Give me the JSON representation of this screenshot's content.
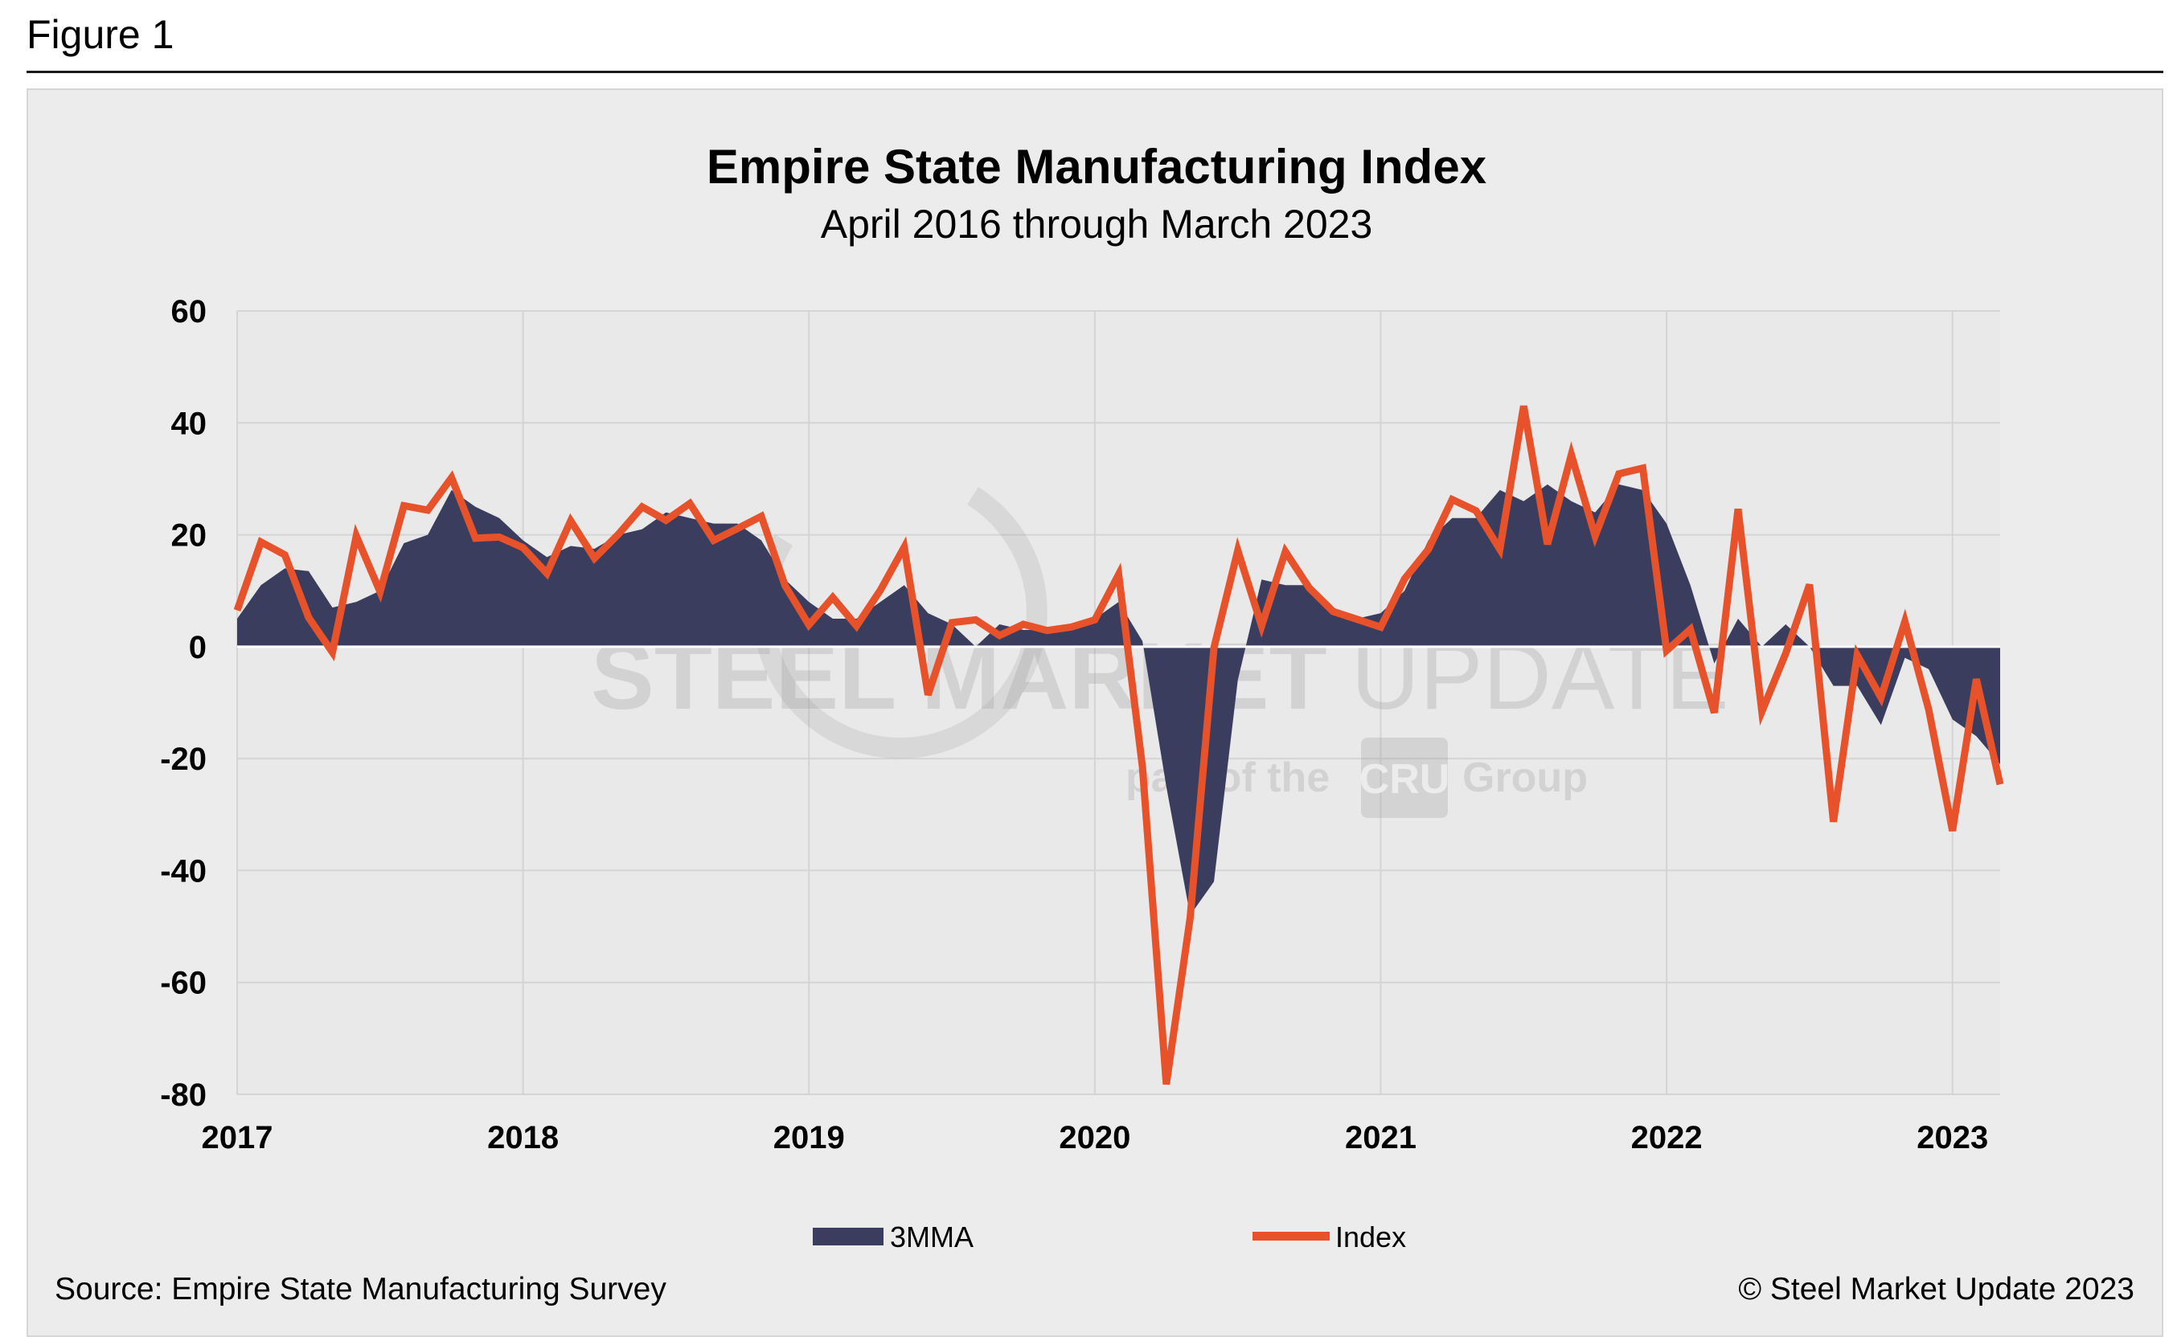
{
  "figure_label": "Figure 1",
  "source_text": "Source: Empire State Manufacturing Survey",
  "copyright_text": "© Steel Market Update 2023",
  "watermark": {
    "line1_bold": "STEEL MARKET",
    "line1_thin": "UPDATE",
    "line2_pre": "part of the",
    "line2_logo": "CRU",
    "line2_post": "Group"
  },
  "colors": {
    "area": "#3b3d5e",
    "line": "#e8522a",
    "grid": "#d4d4d4",
    "plot_bg": "#e9e9e9"
  },
  "chart_data": {
    "type": "line",
    "title": "Empire State Manufacturing Index",
    "subtitle": "April 2016 through March 2023",
    "xlabel": "",
    "ylabel": "",
    "ylim": [
      -80,
      60
    ],
    "yticks": [
      60,
      40,
      20,
      0,
      -20,
      -40,
      -60,
      -80
    ],
    "xlim": [
      "2017-01",
      "2023-03"
    ],
    "xticks": [
      "2017",
      "2018",
      "2019",
      "2020",
      "2021",
      "2022",
      "2023"
    ],
    "grid": true,
    "legend_position": "bottom",
    "x": [
      "2017-01",
      "2017-02",
      "2017-03",
      "2017-04",
      "2017-05",
      "2017-06",
      "2017-07",
      "2017-08",
      "2017-09",
      "2017-10",
      "2017-11",
      "2017-12",
      "2018-01",
      "2018-02",
      "2018-03",
      "2018-04",
      "2018-05",
      "2018-06",
      "2018-07",
      "2018-08",
      "2018-09",
      "2018-10",
      "2018-11",
      "2018-12",
      "2019-01",
      "2019-02",
      "2019-03",
      "2019-04",
      "2019-05",
      "2019-06",
      "2019-07",
      "2019-08",
      "2019-09",
      "2019-10",
      "2019-11",
      "2019-12",
      "2020-01",
      "2020-02",
      "2020-03",
      "2020-04",
      "2020-05",
      "2020-06",
      "2020-07",
      "2020-08",
      "2020-09",
      "2020-10",
      "2020-11",
      "2020-12",
      "2021-01",
      "2021-02",
      "2021-03",
      "2021-04",
      "2021-05",
      "2021-06",
      "2021-07",
      "2021-08",
      "2021-09",
      "2021-10",
      "2021-11",
      "2021-12",
      "2022-01",
      "2022-02",
      "2022-03",
      "2022-04",
      "2022-05",
      "2022-06",
      "2022-07",
      "2022-08",
      "2022-09",
      "2022-10",
      "2022-11",
      "2022-12",
      "2023-01",
      "2023-02",
      "2023-03"
    ],
    "series": [
      {
        "name": "3MMA",
        "kind": "area",
        "values": [
          5,
          11,
          14,
          13.5,
          7,
          8,
          10,
          18.5,
          20,
          28,
          25,
          23,
          19,
          16,
          18,
          17.5,
          20,
          21,
          24,
          23,
          22,
          22,
          19,
          12,
          8,
          5,
          5,
          8,
          11,
          6,
          4,
          0,
          4,
          3,
          3,
          4,
          5,
          8,
          1,
          -25,
          -48,
          -42,
          -6,
          12,
          11,
          11,
          7,
          5,
          6,
          10,
          19,
          23,
          23,
          28,
          26,
          29,
          26,
          24,
          29,
          28,
          22,
          11,
          -3,
          5,
          0,
          4,
          0,
          -7,
          -7,
          -14,
          -2,
          -4,
          -13,
          -16,
          -21
        ]
      },
      {
        "name": "Index",
        "kind": "line",
        "values": [
          6.5,
          18.7,
          16.4,
          5.2,
          -1,
          19.8,
          9.8,
          25.2,
          24.4,
          30.2,
          19.4,
          19.6,
          17.7,
          13.1,
          22.5,
          15.8,
          20.1,
          25,
          22.6,
          25.6,
          19,
          21.1,
          23.3,
          10.9,
          3.9,
          8.8,
          3.7,
          10.1,
          17.8,
          -8.6,
          4.3,
          4.8,
          2,
          4,
          2.9,
          3.5,
          4.8,
          12.9,
          -21.5,
          -78.2,
          -48.5,
          -0.2,
          17.2,
          3.7,
          17,
          10.5,
          6.3,
          4.9,
          3.5,
          12.1,
          17.4,
          26.3,
          24.3,
          17.4,
          43,
          18.3,
          34.3,
          19.8,
          30.9,
          31.9,
          -0.7,
          3.1,
          -11.8,
          24.6,
          -11.6,
          -1.2,
          11.1,
          -31.3,
          -1.5,
          -9.1,
          4.5,
          -11.2,
          -32.9,
          -5.8,
          -24.6
        ]
      }
    ]
  }
}
